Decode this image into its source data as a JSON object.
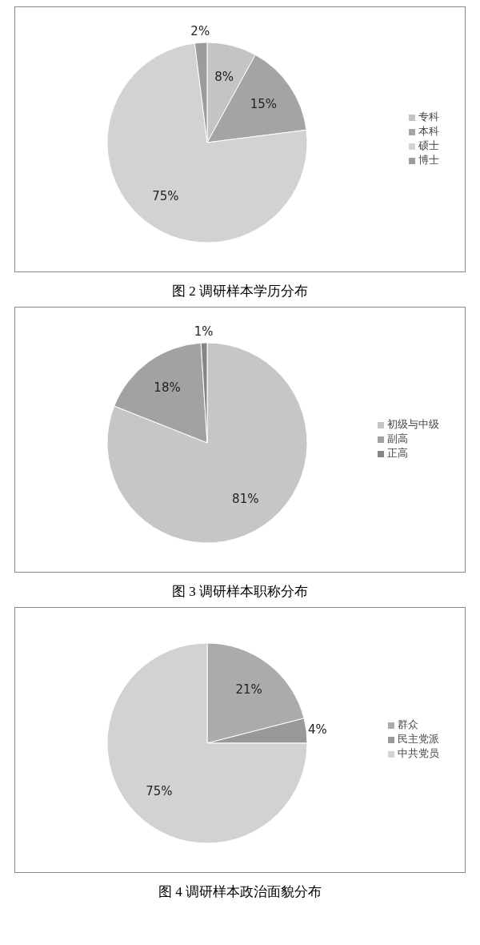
{
  "chart_data": [
    {
      "type": "pie",
      "title": "图 2 调研样本学历分布",
      "categories": [
        "专科",
        "本科",
        "硕士",
        "博士"
      ],
      "values": [
        8,
        15,
        75,
        2
      ],
      "value_labels": [
        "8%",
        "15%",
        "75%",
        "2%"
      ],
      "colors": [
        "#c4c4c4",
        "#a4a4a4",
        "#d2d2d2",
        "#9c9c9c"
      ],
      "legend": "right"
    },
    {
      "type": "pie",
      "title": "图 3 调研样本职称分布",
      "categories": [
        "初级与中级",
        "副高",
        "正高"
      ],
      "values": [
        81,
        18,
        1
      ],
      "value_labels": [
        "81%",
        "18%",
        "1%"
      ],
      "colors": [
        "#c6c6c6",
        "#a2a2a2",
        "#868686"
      ],
      "legend": "right"
    },
    {
      "type": "pie",
      "title": "图 4 调研样本政治面貌分布",
      "categories": [
        "群众",
        "民主党派",
        "中共党员"
      ],
      "values": [
        21,
        4,
        75
      ],
      "value_labels": [
        "21%",
        "4%",
        "75%"
      ],
      "colors": [
        "#ababab",
        "#999999",
        "#d2d2d2"
      ],
      "legend": "right"
    }
  ]
}
